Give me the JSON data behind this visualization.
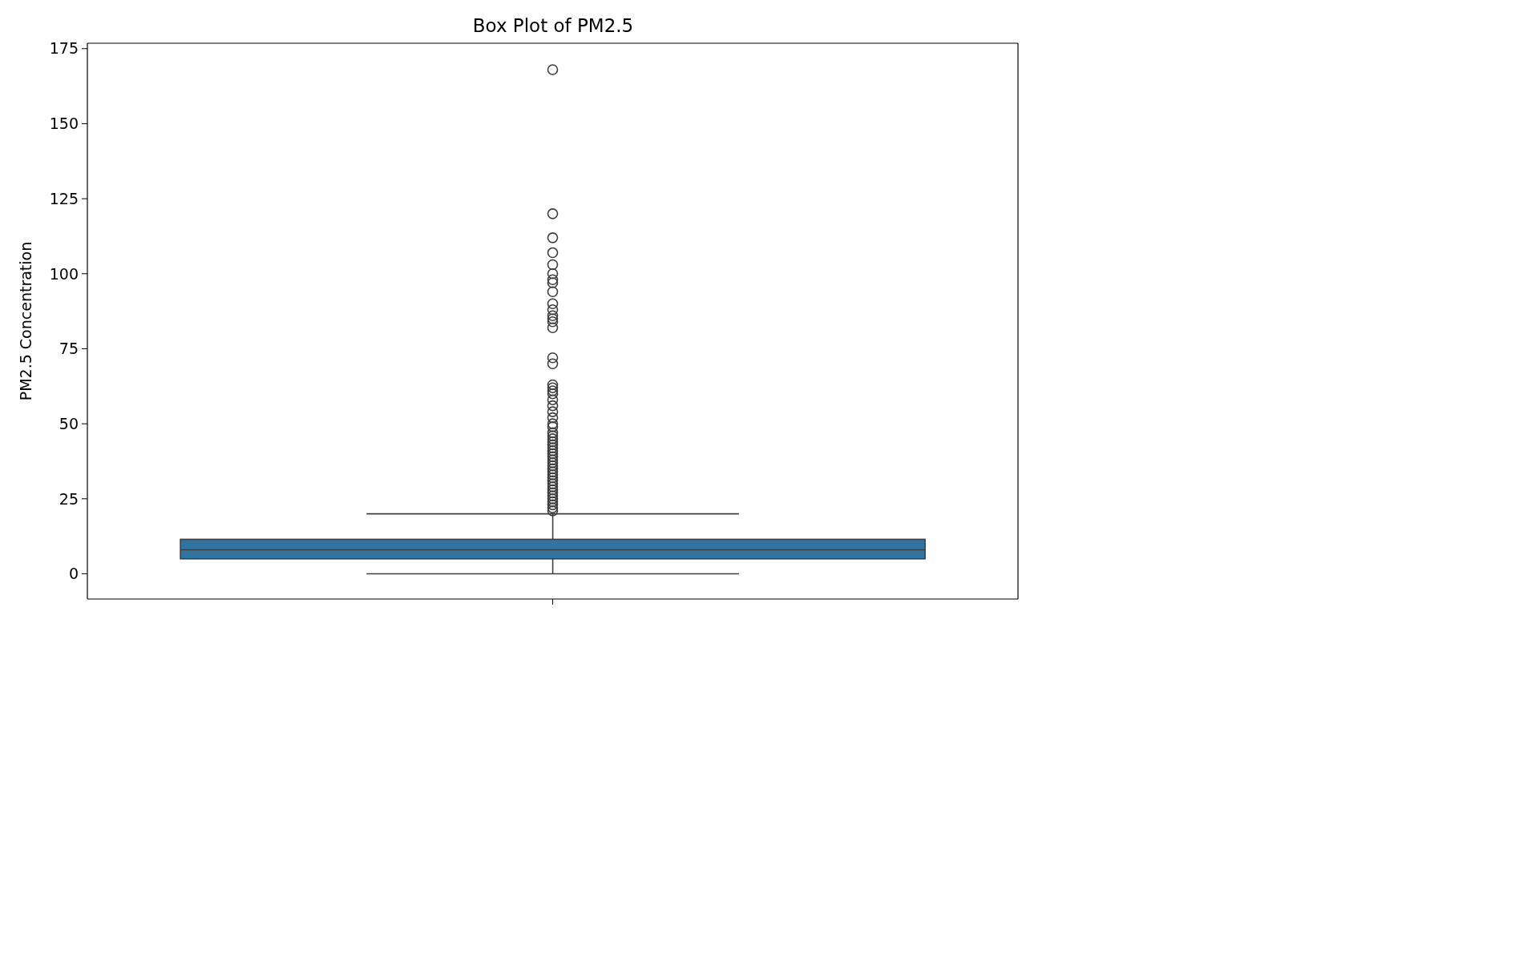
{
  "chart_data": {
    "type": "box",
    "title": "Box Plot of PM2.5",
    "ylabel": "PM2.5 Concentration",
    "categories": [
      null
    ],
    "color": "#3274a1",
    "boxes": [
      {
        "low": 0,
        "q1": 5,
        "median": 8,
        "q3": 11.5,
        "high": 20,
        "outliers": [
          168,
          120,
          112,
          107,
          103,
          100,
          98,
          97,
          94,
          90,
          88,
          86,
          85,
          84,
          82,
          72,
          70,
          63,
          62,
          61,
          60,
          58,
          56,
          54,
          52,
          50,
          49,
          47,
          46,
          45,
          44,
          43,
          42,
          41,
          40,
          39,
          38,
          37,
          36,
          35,
          34,
          33,
          32,
          31,
          30,
          29,
          28,
          27,
          26,
          25,
          24,
          23,
          22,
          21
        ]
      }
    ],
    "ylim": [
      -8.4,
      176.8
    ],
    "yticks": [
      0,
      25,
      50,
      75,
      100,
      125,
      150,
      175
    ]
  }
}
